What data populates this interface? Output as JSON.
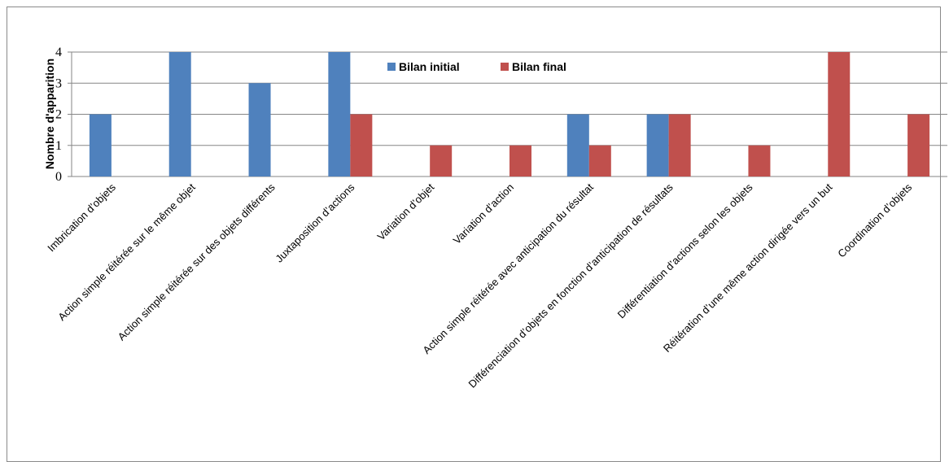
{
  "chart_data": {
    "type": "bar",
    "title": "",
    "xlabel": "",
    "ylabel": "Nombre d'apparition",
    "ylim": [
      0,
      4
    ],
    "yticks": [
      "0",
      "1",
      "2",
      "3",
      "4"
    ],
    "grid": true,
    "legend_position": "top-center",
    "categories": [
      "Imbrication d’objets",
      "Action simple réitérée sur le même objet",
      "Action simple réitérée sur des objets différents",
      "Juxtaposition d’actions",
      "Variation d’objet",
      "Variation d’action",
      "Action simple réitérée avec anticipation du résultat",
      "Différenciation d’objets en fonction d’anticipation de résultats",
      "Différentiation d’actions selon les objets",
      "Réitération  d’une même action  dirigée vers un but",
      "Coordination d’objets"
    ],
    "series": [
      {
        "name": "Bilan initial",
        "color": "#4F81BD",
        "values": [
          2,
          4,
          3,
          4,
          0,
          0,
          2,
          2,
          0,
          0,
          0
        ]
      },
      {
        "name": "Bilan final",
        "color": "#C0504D",
        "values": [
          0,
          0,
          0,
          2,
          1,
          1,
          1,
          2,
          1,
          4,
          2
        ]
      }
    ]
  }
}
